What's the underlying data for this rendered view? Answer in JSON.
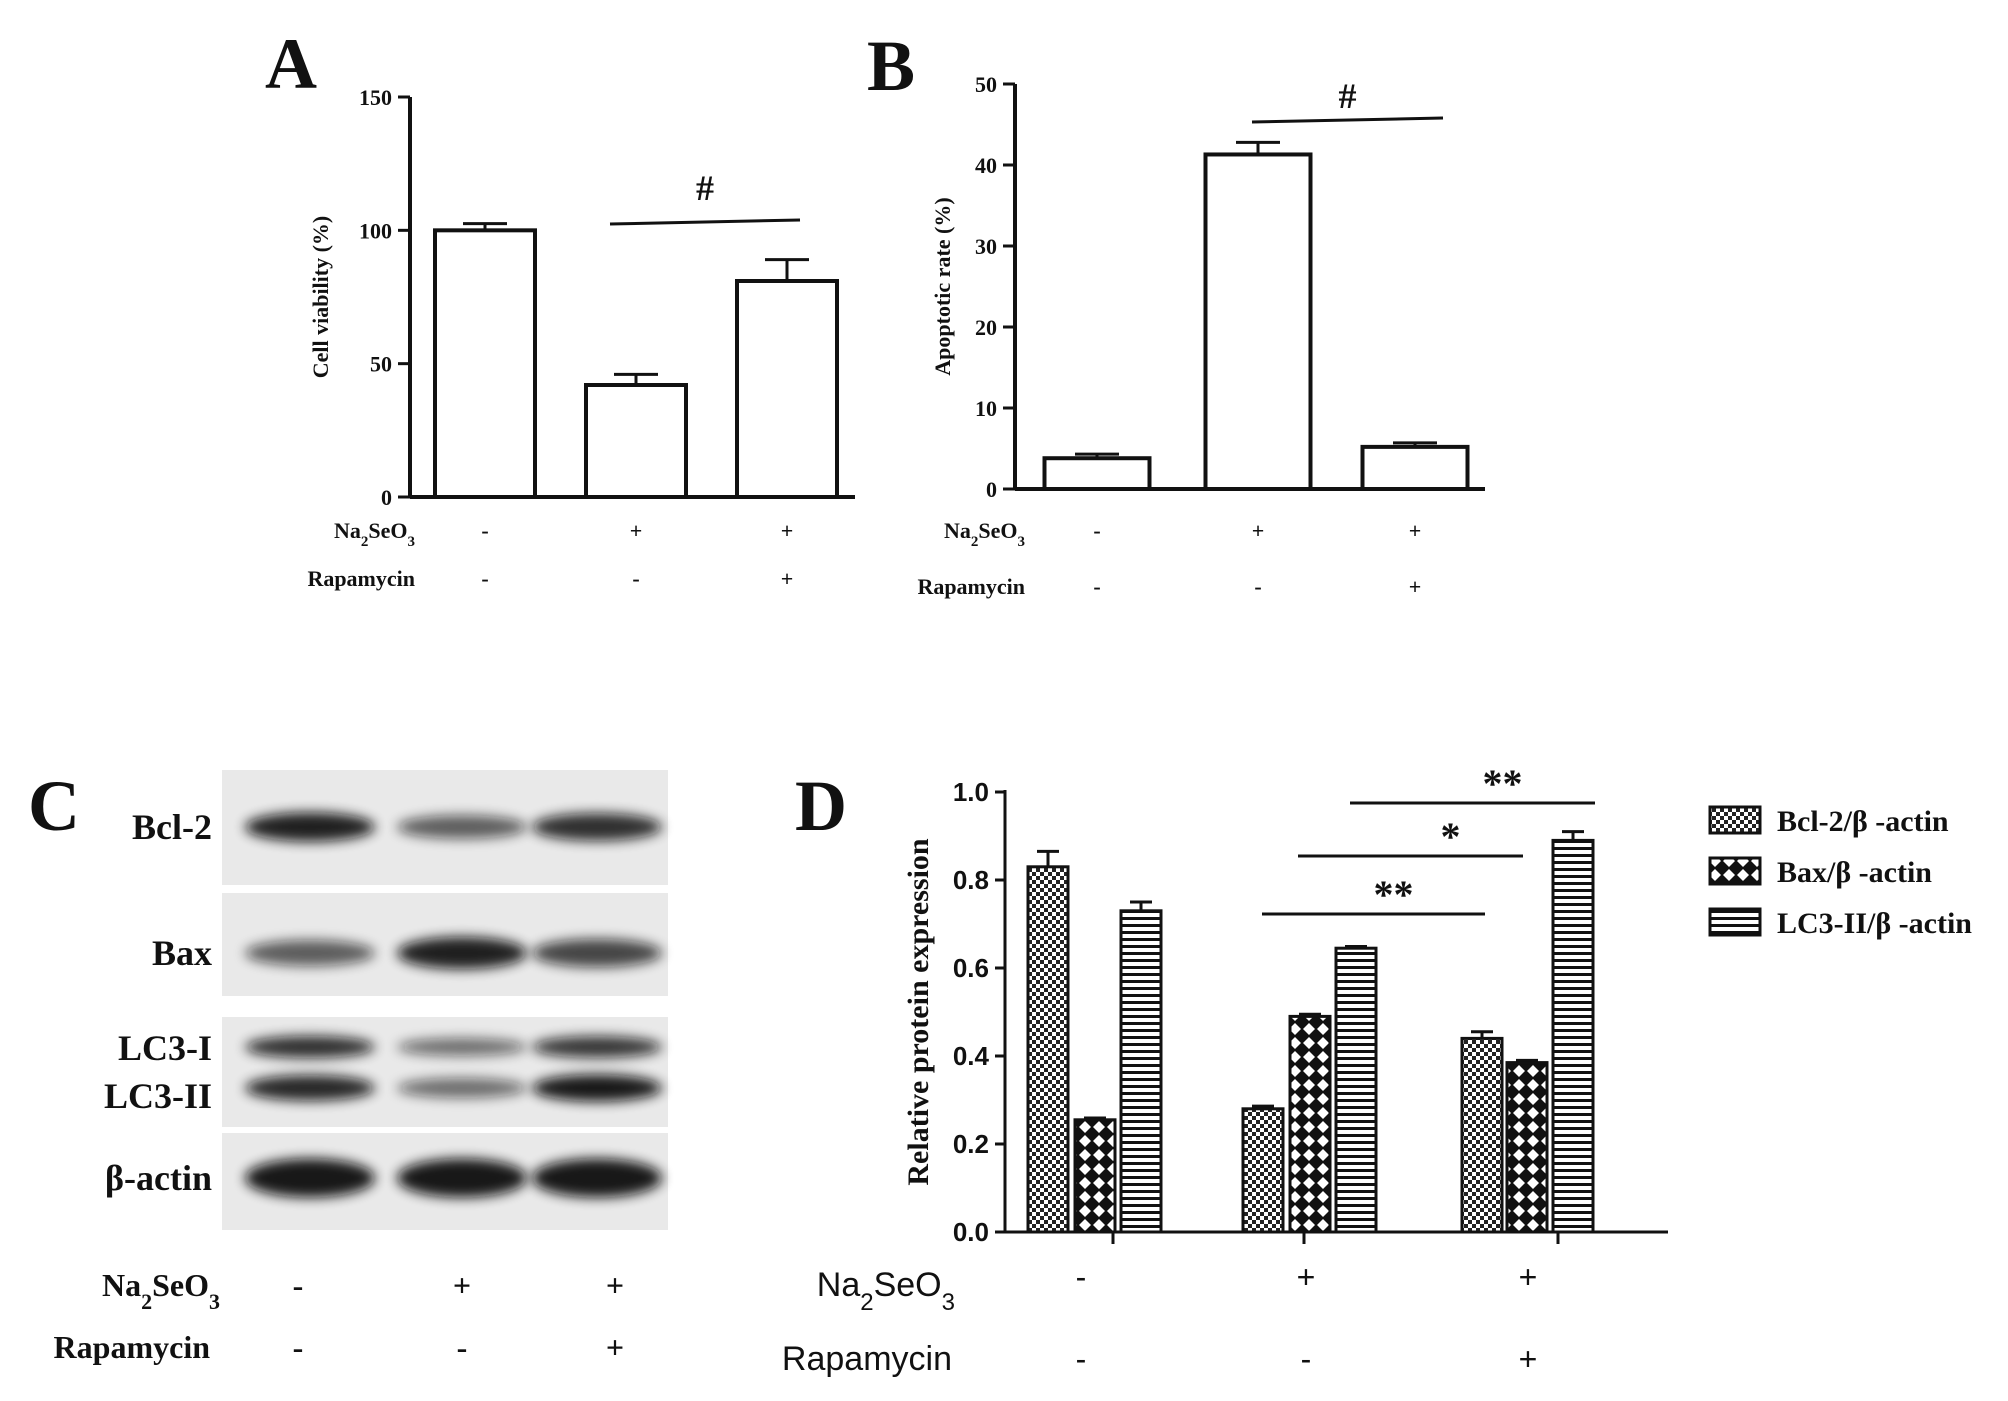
{
  "chart_data": [
    {
      "panel": "A",
      "type": "bar",
      "ylabel": "Cell viability (%)",
      "ylim": [
        0,
        150
      ],
      "yticks": [
        0,
        50,
        100,
        150
      ],
      "values": [
        100,
        42,
        81
      ],
      "errors": [
        2.5,
        4,
        8
      ],
      "treatments": [
        {
          "name": "Na2SeO3",
          "values": [
            "-",
            "+",
            "+"
          ]
        },
        {
          "name": "Rapamycin",
          "values": [
            "-",
            "-",
            "+"
          ]
        }
      ],
      "annotations": [
        {
          "text": "#",
          "from": 1,
          "to": 2
        }
      ]
    },
    {
      "panel": "B",
      "type": "bar",
      "ylabel": "Apoptotic rate (%)",
      "ylim": [
        0,
        50
      ],
      "yticks": [
        0,
        10,
        20,
        30,
        40,
        50
      ],
      "values": [
        3.8,
        41.3,
        5.2
      ],
      "errors": [
        0.5,
        1.5,
        0.5
      ],
      "treatments": [
        {
          "name": "Na2SeO3",
          "values": [
            "-",
            "+",
            "+"
          ]
        },
        {
          "name": "Rapamycin",
          "values": [
            "-",
            "-",
            "+"
          ]
        }
      ],
      "annotations": [
        {
          "text": "#",
          "from": 1,
          "to": 2
        }
      ]
    },
    {
      "panel": "D",
      "type": "bar",
      "ylabel": "Relative protein expression",
      "ylim": [
        0,
        1.0
      ],
      "yticks": [
        "0.0",
        "0.2",
        "0.4",
        "0.6",
        "0.8",
        "1.0"
      ],
      "series": [
        {
          "name": "Bcl-2/β -actin",
          "pattern": "checker",
          "values": [
            0.83,
            0.28,
            0.44
          ],
          "errors": [
            0.035,
            0.006,
            0.015
          ]
        },
        {
          "name": "Bax/β -actin",
          "pattern": "diamond",
          "values": [
            0.255,
            0.49,
            0.385
          ],
          "errors": [
            0.004,
            0.005,
            0.005
          ]
        },
        {
          "name": "LC3-II/β -actin",
          "pattern": "hlines",
          "values": [
            0.73,
            0.645,
            0.89
          ],
          "errors": [
            0.02,
            0.004,
            0.02
          ]
        }
      ],
      "treatments": [
        {
          "name": "Na2SeO3",
          "values": [
            "-",
            "+",
            "+"
          ]
        },
        {
          "name": "Rapamycin",
          "values": [
            "-",
            "-",
            "+"
          ]
        }
      ],
      "annotations": [
        {
          "text": "**",
          "level": 1
        },
        {
          "text": "*",
          "level": 2
        },
        {
          "text": "**",
          "level": 3
        }
      ]
    }
  ],
  "panel_labels": {
    "a": "A",
    "b": "B",
    "c": "C",
    "d": "D"
  },
  "blot": {
    "rows": [
      {
        "label": "Bcl-2",
        "intensity": [
          0.95,
          0.55,
          0.85
        ]
      },
      {
        "label": "Bax",
        "intensity": [
          0.55,
          0.95,
          0.7
        ]
      },
      {
        "label": "LC3-I",
        "intensity": [
          0.85,
          0.45,
          0.8
        ]
      },
      {
        "label": "LC3-II",
        "intensity": [
          0.9,
          0.45,
          1.0
        ]
      },
      {
        "label": "β-actin",
        "intensity": [
          1.0,
          1.0,
          1.0
        ]
      }
    ],
    "treatments": [
      {
        "name": "Na2SeO3",
        "values": [
          "-",
          "+",
          "+"
        ]
      },
      {
        "name": "Rapamycin",
        "values": [
          "-",
          "-",
          "+"
        ]
      }
    ]
  }
}
